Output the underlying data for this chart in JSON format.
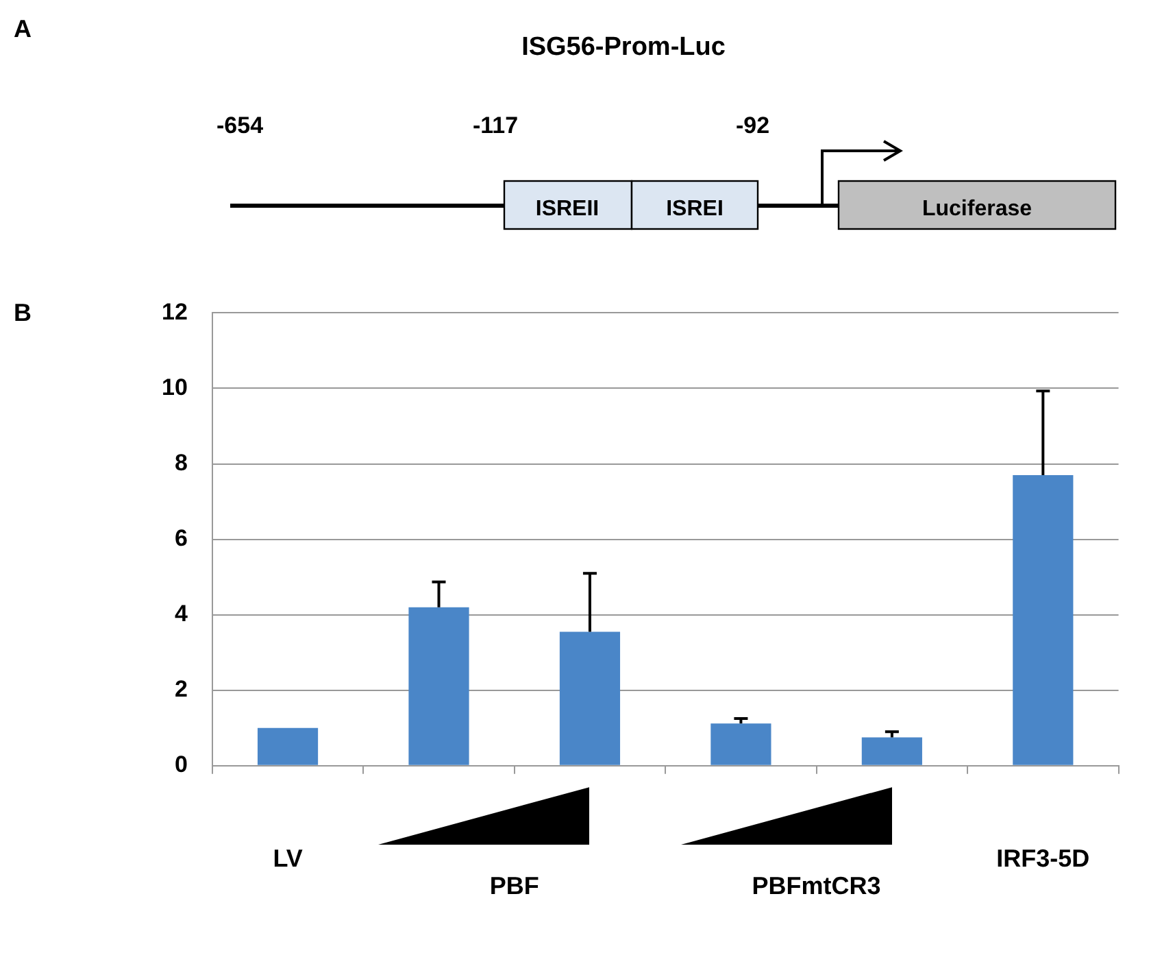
{
  "chart_data": [
    {
      "type": "other",
      "title": "ISG56-Prom-Luc",
      "annotations": [
        "A",
        "-654",
        "-117",
        "-92",
        "ISREII",
        "ISREI",
        "Luciferase"
      ]
    },
    {
      "type": "bar",
      "categories": [
        "LV",
        null,
        null,
        null,
        null,
        "IRF3-5D"
      ],
      "values": [
        1.0,
        4.2,
        3.55,
        1.12,
        0.75,
        7.7
      ],
      "color": "#4a86c8",
      "errors": [
        null,
        [
          4.2,
          4.87
        ],
        [
          3.55,
          5.1
        ],
        [
          1.12,
          1.25
        ],
        [
          0.75,
          0.9
        ],
        [
          7.7,
          9.93
        ]
      ],
      "ylim": [
        0,
        12
      ],
      "yticks": [
        0,
        2,
        4,
        6,
        8,
        10,
        12
      ],
      "grid": "y",
      "legend": false,
      "annotations": [
        "B",
        "PBF",
        "PBFmtCR3"
      ]
    }
  ]
}
